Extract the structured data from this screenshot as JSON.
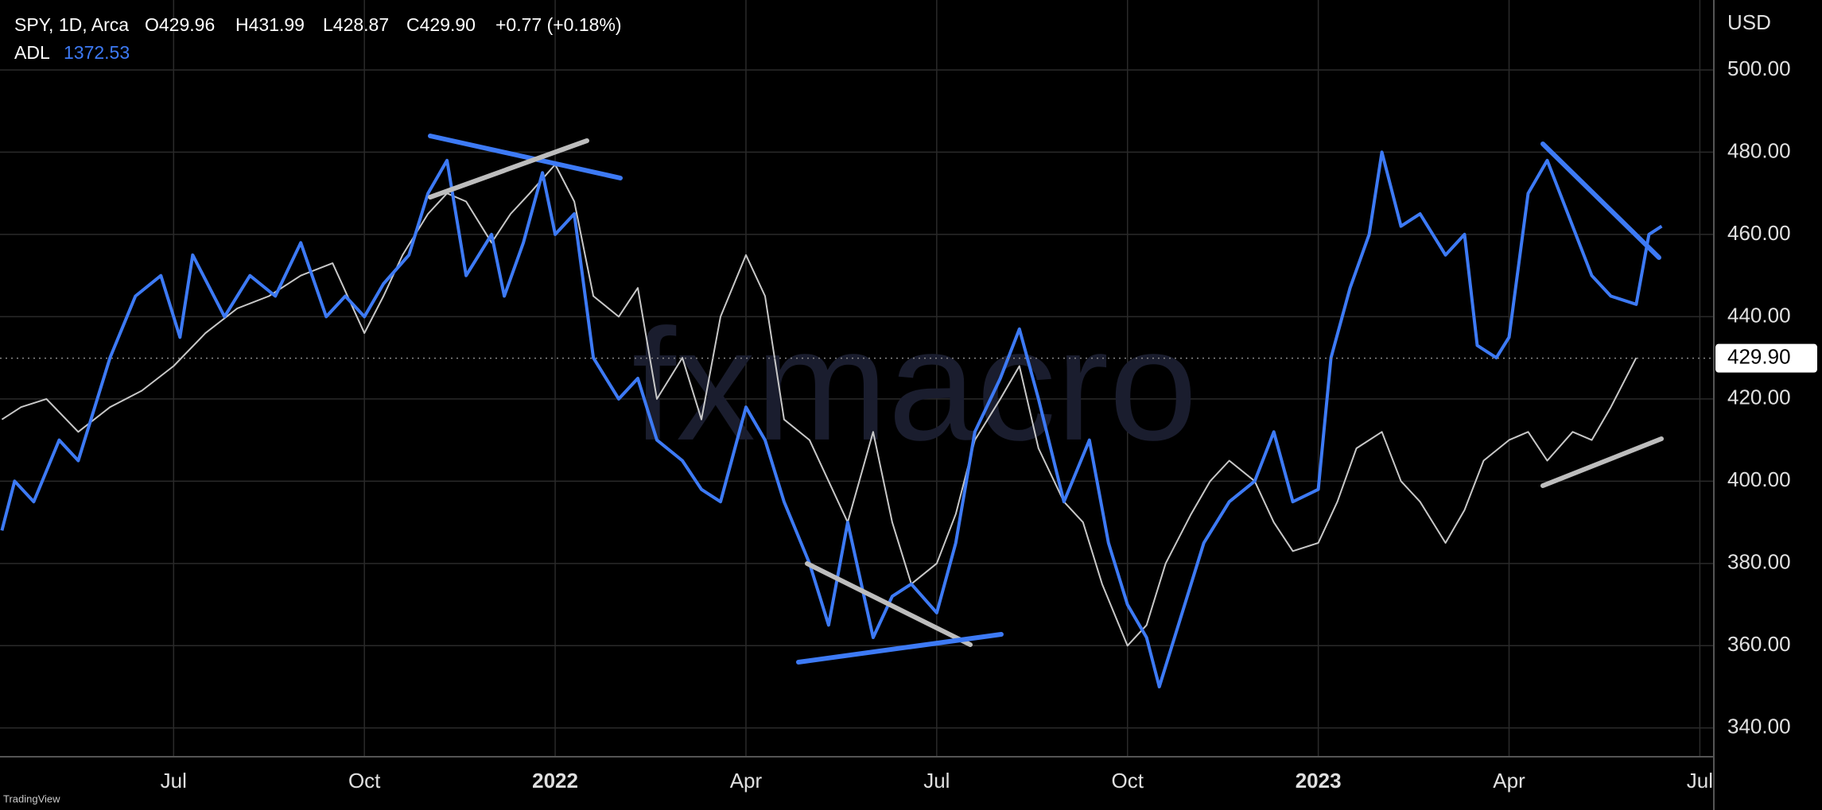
{
  "chart_data": {
    "type": "line",
    "symbol": "SPY, 1D, Arca",
    "open": "O429.96",
    "high": "H431.99",
    "low": "L428.87",
    "close": "C429.90",
    "change": "+0.77 (+0.18%)",
    "indicator": "ADL",
    "indicator_value": "1372.53",
    "currency": "USD",
    "last_price": {
      "value": 429.9,
      "label": "429.90"
    },
    "watermark": "fxmacro",
    "footer": "TradingView",
    "xlim": [
      3.27,
      30.22
    ],
    "xticks": [
      {
        "value": 6,
        "label": "Jul"
      },
      {
        "value": 9,
        "label": "Oct"
      },
      {
        "value": 12,
        "label": "2022"
      },
      {
        "value": 15,
        "label": "Apr"
      },
      {
        "value": 18,
        "label": "Jul"
      },
      {
        "value": 21,
        "label": "Oct"
      },
      {
        "value": 24,
        "label": "2023"
      },
      {
        "value": 27,
        "label": "Apr"
      },
      {
        "value": 30,
        "label": "Jul"
      }
    ],
    "ylim": [
      333,
      517
    ],
    "yticks": [
      {
        "value": 340,
        "label": "340.00"
      },
      {
        "value": 360,
        "label": "360.00"
      },
      {
        "value": 380,
        "label": "380.00"
      },
      {
        "value": 400,
        "label": "400.00"
      },
      {
        "value": 420,
        "label": "420.00"
      },
      {
        "value": 440,
        "label": "440.00"
      },
      {
        "value": 460,
        "label": "460.00"
      },
      {
        "value": 480,
        "label": "480.00"
      },
      {
        "value": 500,
        "label": "500.00"
      }
    ],
    "grid": true,
    "series": [
      {
        "name": "SPY",
        "color": "#c8c8c8",
        "x": [
          3.3,
          3.6,
          4,
          4.5,
          5,
          5.5,
          6,
          6.5,
          7,
          7.5,
          8,
          8.5,
          9,
          9.3,
          9.6,
          10,
          10.3,
          10.6,
          11,
          11.3,
          11.6,
          12,
          12.3,
          12.6,
          13,
          13.3,
          13.6,
          14,
          14.3,
          14.6,
          15,
          15.3,
          15.6,
          16,
          16.3,
          16.6,
          17,
          17.3,
          17.6,
          18,
          18.3,
          18.6,
          19,
          19.3,
          19.6,
          20,
          20.3,
          20.6,
          21,
          21.3,
          21.6,
          22,
          22.3,
          22.6,
          23,
          23.3,
          23.6,
          24,
          24.3,
          24.6,
          25,
          25.3,
          25.6,
          26,
          26.3,
          26.6,
          27,
          27.3,
          27.6,
          28,
          28.3,
          28.6,
          29
        ],
        "values": [
          415,
          418,
          420,
          412,
          418,
          422,
          428,
          436,
          442,
          445,
          450,
          453,
          436,
          445,
          455,
          465,
          470,
          468,
          458,
          465,
          470,
          477,
          468,
          445,
          440,
          447,
          420,
          430,
          415,
          440,
          455,
          445,
          415,
          410,
          400,
          390,
          412,
          390,
          375,
          380,
          392,
          410,
          420,
          428,
          408,
          395,
          390,
          375,
          360,
          365,
          380,
          392,
          400,
          405,
          400,
          390,
          383,
          385,
          395,
          408,
          412,
          400,
          395,
          385,
          393,
          405,
          410,
          412,
          405,
          412,
          410,
          418,
          430
        ]
      },
      {
        "name": "ADL",
        "color": "#3d7af5",
        "x": [
          3.3,
          3.5,
          3.8,
          4.2,
          4.5,
          5,
          5.4,
          5.8,
          6.1,
          6.3,
          6.8,
          7.2,
          7.6,
          8,
          8.4,
          8.7,
          9,
          9.3,
          9.7,
          10,
          10.3,
          10.6,
          11,
          11.2,
          11.5,
          11.8,
          12,
          12.3,
          12.6,
          13,
          13.3,
          13.6,
          14,
          14.3,
          14.6,
          15,
          15.3,
          15.6,
          16,
          16.3,
          16.6,
          17,
          17.3,
          17.6,
          18,
          18.3,
          18.6,
          19,
          19.3,
          19.6,
          20,
          20.4,
          20.7,
          21,
          21.3,
          21.5,
          21.8,
          22.2,
          22.6,
          23,
          23.3,
          23.6,
          24,
          24.2,
          24.5,
          24.8,
          25,
          25.3,
          25.6,
          26,
          26.3,
          26.5,
          26.8,
          27,
          27.3,
          27.6,
          28,
          28.3,
          28.6,
          29,
          29.2,
          29.4
        ],
        "values": [
          388,
          400,
          395,
          410,
          405,
          430,
          445,
          450,
          435,
          455,
          440,
          450,
          445,
          458,
          440,
          445,
          440,
          448,
          455,
          470,
          478,
          450,
          460,
          445,
          458,
          475,
          460,
          465,
          430,
          420,
          425,
          410,
          405,
          398,
          395,
          418,
          410,
          395,
          380,
          365,
          390,
          362,
          372,
          375,
          368,
          385,
          412,
          425,
          437,
          420,
          395,
          410,
          385,
          370,
          362,
          350,
          365,
          385,
          395,
          400,
          412,
          395,
          398,
          430,
          447,
          460,
          480,
          462,
          465,
          455,
          460,
          433,
          430,
          435,
          470,
          478,
          462,
          450,
          445,
          443,
          460,
          462
        ]
      }
    ]
  }
}
